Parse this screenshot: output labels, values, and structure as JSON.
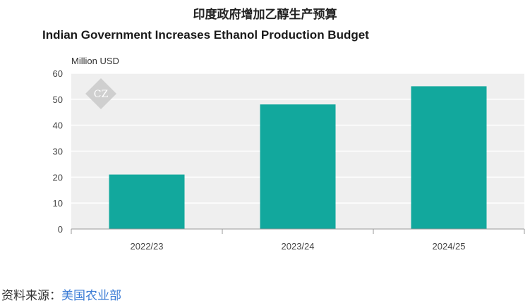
{
  "header": {
    "cn_title": "印度政府增加乙醇生产预算"
  },
  "chart_data": {
    "type": "bar",
    "title": "Indian Government Increases Ethanol Production Budget",
    "ylabel": "Million USD",
    "xlabel": "",
    "categories": [
      "2022/23",
      "2023/24",
      "2024/25"
    ],
    "values": [
      21,
      48,
      55
    ],
    "ylim": [
      0,
      60
    ],
    "yticks": [
      0,
      10,
      20,
      30,
      40,
      50,
      60
    ],
    "grid": true,
    "bar_color": "#12a89d",
    "plot_background": "#efefef",
    "watermark": "CZ"
  },
  "footer": {
    "source_label": "资料来源：",
    "source_name": "美国农业部"
  },
  "colors": {
    "bar": "#12a89d",
    "plot_bg": "#efefef",
    "link": "#3a7bd5"
  }
}
